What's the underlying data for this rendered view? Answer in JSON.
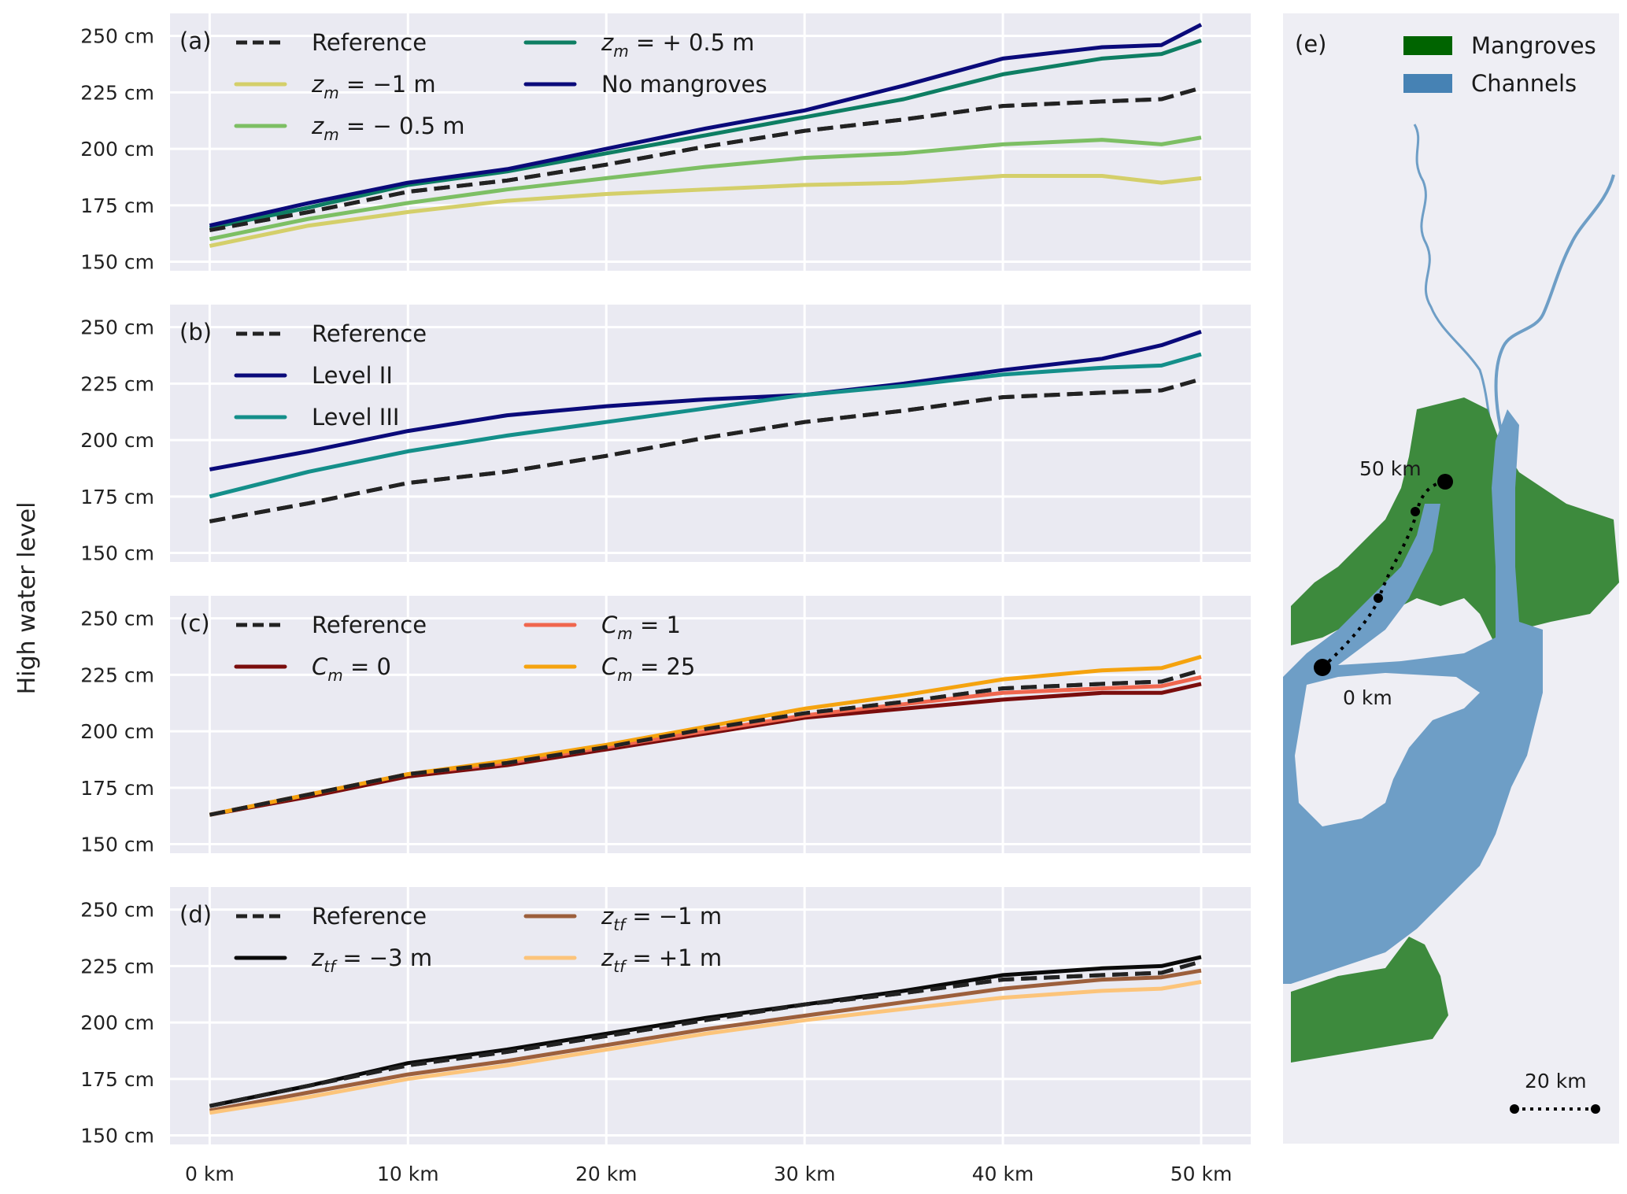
{
  "figure": {
    "shared_ylabel": "High water level",
    "xtick_labels": [
      "0 km",
      "10 km",
      "20 km",
      "30 km",
      "40 km",
      "50 km"
    ],
    "ytick_labels": [
      "150 cm",
      "175 cm",
      "200 cm",
      "225 cm",
      "250 cm"
    ]
  },
  "chart_data": [
    {
      "panel": "(a)",
      "type": "line",
      "xlabel": "",
      "ylabel": "High water level",
      "x_unit": "km",
      "y_unit": "cm",
      "xlim": [
        -2,
        52.5
      ],
      "ylim": [
        146,
        260
      ],
      "xticks": [
        0,
        10,
        20,
        30,
        40,
        50
      ],
      "yticks": [
        150,
        175,
        200,
        225,
        250
      ],
      "grid": true,
      "legend_position": "top-left",
      "x": [
        0,
        5,
        10,
        15,
        20,
        25,
        30,
        35,
        40,
        45,
        48,
        50
      ],
      "series": [
        {
          "name": "Reference",
          "sym": "",
          "sub": "",
          "rest": "Reference",
          "color": "#222222",
          "dash": true,
          "values": [
            164,
            172,
            181,
            186,
            193,
            201,
            208,
            213,
            219,
            221,
            222,
            227
          ]
        },
        {
          "name": "z_m = −1 m",
          "sym": "z",
          "sub": "m",
          "rest": " = −1 m",
          "color": "#d4cf6a",
          "dash": false,
          "values": [
            157,
            166,
            172,
            177,
            180,
            182,
            184,
            185,
            188,
            188,
            185,
            187
          ]
        },
        {
          "name": "z_m = − 0.5 m",
          "sym": "z",
          "sub": "m",
          "rest": " = − 0.5 m",
          "color": "#7dbf64",
          "dash": false,
          "values": [
            160,
            169,
            176,
            182,
            187,
            192,
            196,
            198,
            202,
            204,
            202,
            205
          ]
        },
        {
          "name": "z_m = + 0.5 m",
          "sym": "z",
          "sub": "m",
          "rest": " = + 0.5 m",
          "color": "#0e7e63",
          "dash": false,
          "values": [
            165,
            174,
            184,
            190,
            198,
            206,
            214,
            222,
            233,
            240,
            242,
            248
          ]
        },
        {
          "name": "No mangroves",
          "sym": "",
          "sub": "",
          "rest": "No mangroves",
          "color": "#0a0a7a",
          "dash": false,
          "values": [
            166,
            176,
            185,
            191,
            200,
            209,
            217,
            228,
            240,
            245,
            246,
            255
          ]
        }
      ],
      "legend_columns": [
        [
          0,
          1,
          2
        ],
        [
          3,
          4
        ]
      ]
    },
    {
      "panel": "(b)",
      "type": "line",
      "xlim": [
        -2,
        52.5
      ],
      "ylim": [
        146,
        260
      ],
      "xticks": [
        0,
        10,
        20,
        30,
        40,
        50
      ],
      "yticks": [
        150,
        175,
        200,
        225,
        250
      ],
      "grid": true,
      "legend_position": "top-left",
      "x": [
        0,
        5,
        10,
        15,
        20,
        25,
        30,
        35,
        40,
        45,
        48,
        50
      ],
      "series": [
        {
          "name": "Reference",
          "sym": "",
          "sub": "",
          "rest": "Reference",
          "color": "#222222",
          "dash": true,
          "values": [
            164,
            172,
            181,
            186,
            193,
            201,
            208,
            213,
            219,
            221,
            222,
            227
          ]
        },
        {
          "name": "Level II",
          "sym": "",
          "sub": "",
          "rest": "Level II",
          "color": "#0a0a7a",
          "dash": false,
          "values": [
            187,
            195,
            204,
            211,
            215,
            218,
            220,
            225,
            231,
            236,
            242,
            248
          ]
        },
        {
          "name": "Level III",
          "sym": "",
          "sub": "",
          "rest": "Level III",
          "color": "#148f8a",
          "dash": false,
          "values": [
            175,
            186,
            195,
            202,
            208,
            214,
            220,
            224,
            229,
            232,
            233,
            238
          ]
        }
      ],
      "legend_columns": [
        [
          0,
          1,
          2
        ]
      ]
    },
    {
      "panel": "(c)",
      "type": "line",
      "xlim": [
        -2,
        52.5
      ],
      "ylim": [
        146,
        260
      ],
      "xticks": [
        0,
        10,
        20,
        30,
        40,
        50
      ],
      "yticks": [
        150,
        175,
        200,
        225,
        250
      ],
      "grid": true,
      "legend_position": "top-left",
      "x": [
        0,
        5,
        10,
        15,
        20,
        25,
        30,
        35,
        40,
        45,
        48,
        50
      ],
      "series": [
        {
          "name": "Reference",
          "sym": "",
          "sub": "",
          "rest": "Reference",
          "color": "#222222",
          "dash": true,
          "values": [
            163,
            172,
            181,
            186,
            193,
            201,
            208,
            213,
            219,
            221,
            222,
            227
          ]
        },
        {
          "name": "C_m = 0",
          "sym": "C",
          "sub": "m",
          "rest": " = 0",
          "color": "#7a0d0d",
          "dash": false,
          "values": [
            163,
            171,
            180,
            185,
            192,
            199,
            206,
            210,
            214,
            217,
            217,
            221
          ]
        },
        {
          "name": "C_m = 1",
          "sym": "C",
          "sub": "m",
          "rest": " = 1",
          "color": "#f0664e",
          "dash": false,
          "values": [
            163,
            172,
            181,
            186,
            193,
            200,
            207,
            212,
            217,
            219,
            220,
            224
          ]
        },
        {
          "name": "C_m = 25",
          "sym": "C",
          "sub": "m",
          "rest": " = 25",
          "color": "#f5a30f",
          "dash": false,
          "values": [
            163,
            172,
            181,
            187,
            194,
            202,
            210,
            216,
            223,
            227,
            228,
            233
          ]
        }
      ],
      "legend_columns": [
        [
          0,
          1
        ],
        [
          2,
          3
        ]
      ]
    },
    {
      "panel": "(d)",
      "type": "line",
      "xlim": [
        -2,
        52.5
      ],
      "ylim": [
        146,
        260
      ],
      "xticks": [
        0,
        10,
        20,
        30,
        40,
        50
      ],
      "yticks": [
        150,
        175,
        200,
        225,
        250
      ],
      "grid": true,
      "legend_position": "top-left",
      "x": [
        0,
        5,
        10,
        15,
        20,
        25,
        30,
        35,
        40,
        45,
        48,
        50
      ],
      "series": [
        {
          "name": "Reference",
          "sym": "",
          "sub": "",
          "rest": "Reference",
          "color": "#222222",
          "dash": true,
          "values": [
            163,
            172,
            181,
            187,
            194,
            201,
            208,
            213,
            219,
            221,
            222,
            227
          ]
        },
        {
          "name": "z_tf = −3 m",
          "sym": "z",
          "sub": "tf",
          "rest": " = −3 m",
          "color": "#0a0a0a",
          "dash": false,
          "values": [
            163,
            172,
            182,
            188,
            195,
            202,
            208,
            214,
            221,
            224,
            225,
            229
          ]
        },
        {
          "name": "z_tf = −1 m",
          "sym": "z",
          "sub": "tf",
          "rest": " = −1 m",
          "color": "#9c5f3c",
          "dash": false,
          "values": [
            161,
            169,
            177,
            183,
            190,
            197,
            203,
            209,
            215,
            219,
            220,
            223
          ]
        },
        {
          "name": "z_tf = +1 m",
          "sym": "z",
          "sub": "tf",
          "rest": " = +1 m",
          "color": "#fcc47a",
          "dash": false,
          "values": [
            160,
            167,
            175,
            181,
            188,
            195,
            201,
            206,
            211,
            214,
            215,
            218
          ]
        }
      ],
      "legend_columns": [
        [
          0,
          1
        ],
        [
          2,
          3
        ]
      ]
    }
  ],
  "map": {
    "panel": "(e)",
    "legend": [
      {
        "label": "Mangroves",
        "color": "#006400"
      },
      {
        "label": "Channels",
        "color": "#4682b4"
      }
    ],
    "land_color": "#3d8a3d",
    "water_color": "#6e9ec6",
    "background_color": "#eeeef4",
    "markers": [
      {
        "label": "50 km"
      },
      {
        "label": "0 km"
      }
    ],
    "scale_bar_label": "20 km"
  }
}
